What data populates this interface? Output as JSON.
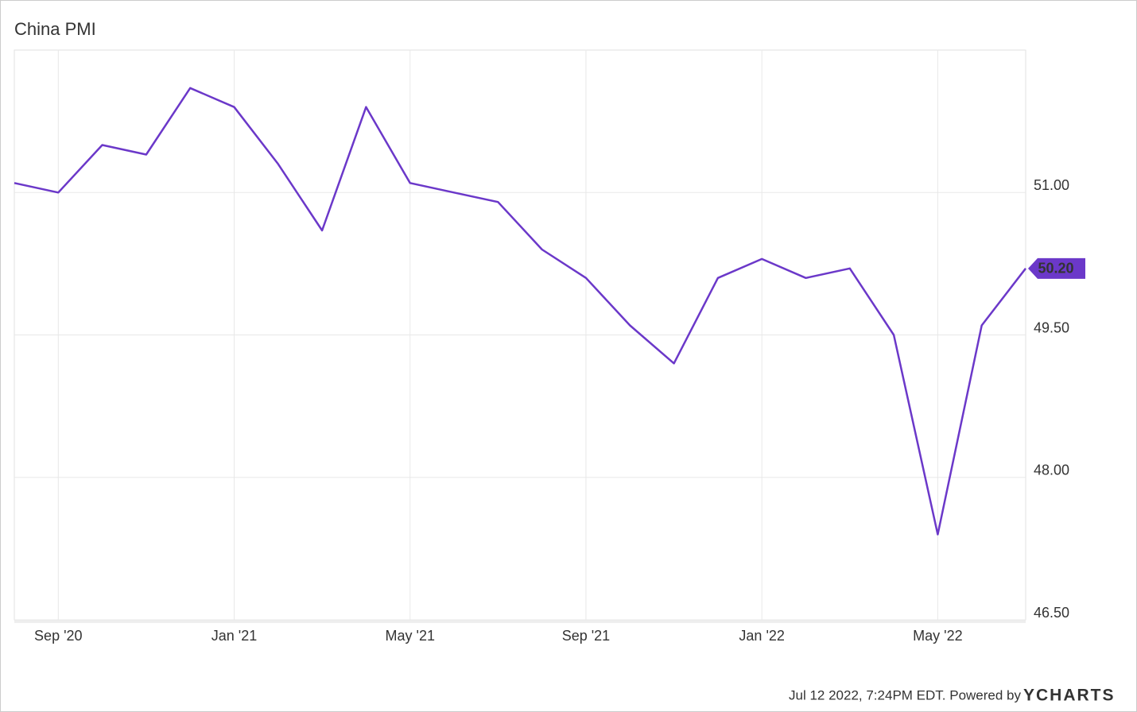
{
  "chart_data": {
    "type": "line",
    "title": "China PMI",
    "x": [
      "2020-08",
      "2020-09",
      "2020-10",
      "2020-11",
      "2020-12",
      "2021-01",
      "2021-02",
      "2021-03",
      "2021-04",
      "2021-05",
      "2021-06",
      "2021-07",
      "2021-08",
      "2021-09",
      "2021-10",
      "2021-11",
      "2021-12",
      "2022-01",
      "2022-02",
      "2022-03",
      "2022-04",
      "2022-05",
      "2022-06",
      "2022-07"
    ],
    "series": [
      {
        "name": "China PMI",
        "color": "#6b38c9",
        "values": [
          51.1,
          51.0,
          51.5,
          51.4,
          52.1,
          51.9,
          51.3,
          50.6,
          51.9,
          51.1,
          51.0,
          50.9,
          50.4,
          50.1,
          49.6,
          49.2,
          50.1,
          50.3,
          50.1,
          50.2,
          49.5,
          47.4,
          49.6,
          50.2
        ]
      }
    ],
    "end_label": {
      "value": 50.2,
      "label": "50.20"
    },
    "xlim": [
      "2020-08",
      "2022-07"
    ],
    "xticks": [
      {
        "value": "2020-09",
        "label": "Sep '20"
      },
      {
        "value": "2021-01",
        "label": "Jan '21"
      },
      {
        "value": "2021-05",
        "label": "May '21"
      },
      {
        "value": "2021-09",
        "label": "Sep '21"
      },
      {
        "value": "2022-01",
        "label": "Jan '22"
      },
      {
        "value": "2022-05",
        "label": "May '22"
      }
    ],
    "ylim": [
      46.5,
      52.5
    ],
    "yticks": [
      {
        "value": 46.5,
        "label": "46.50"
      },
      {
        "value": 48,
        "label": "48.00"
      },
      {
        "value": 49.5,
        "label": "49.50"
      },
      {
        "value": 51,
        "label": "51.00"
      }
    ],
    "grid": true,
    "footer": "Jul 12 2022, 7:24PM EDT. Powered by",
    "brand": "YCHARTS"
  }
}
